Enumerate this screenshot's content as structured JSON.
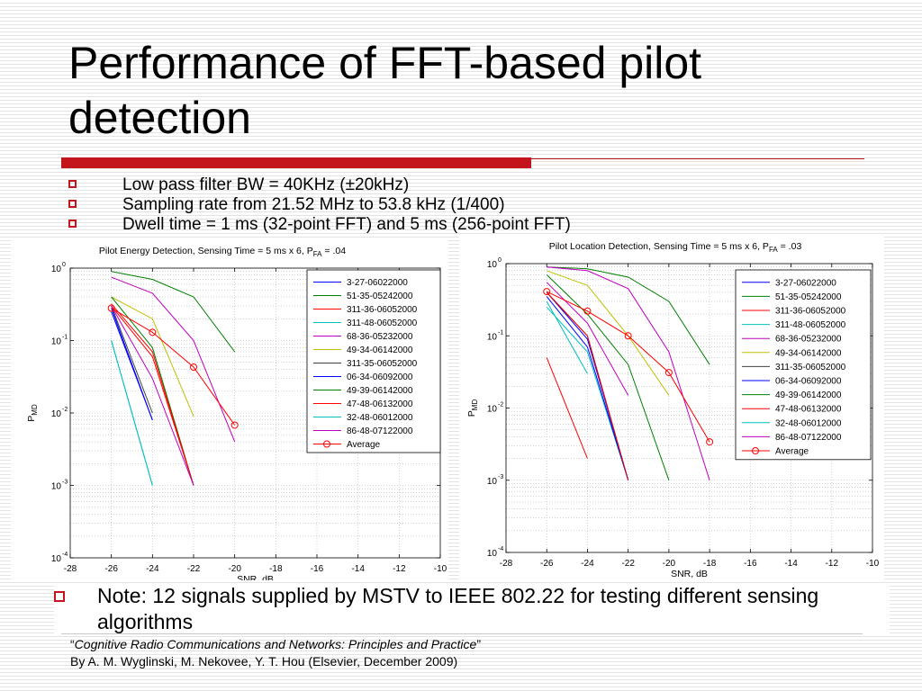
{
  "slide": {
    "title": "Performance of FFT-based pilot detection",
    "bullets": [
      {
        "text": "Low pass filter BW = 40KHz (±20kHz)"
      },
      {
        "text": "Sampling rate from 21.52 MHz to 53.8 kHz (1/400)"
      },
      {
        "text": "Dwell time = 1 ms (32-point FFT) and 5 ms (256-point FFT)"
      }
    ],
    "note": "Note: 12 signals supplied by MSTV to IEEE 802.22 for testing different sensing algorithms",
    "citation": {
      "quote_open": "“",
      "book": "Cognitive Radio Communications and Networks: Principles and Practice",
      "quote_close": "”",
      "authors": "By A. M. Wyglinski, M. Nekovee, Y. T. Hou (Elsevier, December 2009)"
    },
    "colors": {
      "accent": "#c4151c"
    }
  },
  "chart_data": [
    {
      "type": "line",
      "title": "Pilot Energy Detection, Sensing Time = 5 ms x 6, P",
      "title_sub": "FA",
      "title_suffix": " = .04",
      "xlabel": "SNR, dB",
      "ylabel": "P",
      "ylabel_sub": "MD",
      "xlim": [
        -28,
        -10
      ],
      "ylim": [
        0.0001,
        1
      ],
      "yscale": "log",
      "xticks": [
        -28,
        -26,
        -24,
        -22,
        -20,
        -18,
        -16,
        -14,
        -12,
        -10
      ],
      "xtick_labels": [
        "-28",
        "-26",
        "-24",
        "-22",
        "-20",
        "-18",
        "-16",
        "-14",
        "-12",
        "-10"
      ],
      "yticks": [
        {
          "value": 1,
          "base": "10",
          "exp": "0"
        },
        {
          "value": 0.1,
          "base": "10",
          "exp": "-1"
        },
        {
          "value": 0.01,
          "base": "10",
          "exp": "-2"
        },
        {
          "value": 0.001,
          "base": "10",
          "exp": "-3"
        },
        {
          "value": 0.0001,
          "base": "10",
          "exp": "-4"
        }
      ],
      "grid": true,
      "legend_position": "top-right",
      "series": [
        {
          "name": "3-27-06022000",
          "color": "#0000ff",
          "x": [
            -26,
            -24
          ],
          "y": [
            0.25,
            0.008
          ]
        },
        {
          "name": "51-35-05242000",
          "color": "#008000",
          "x": [
            -26,
            -24,
            -22,
            -20
          ],
          "y": [
            0.9,
            0.7,
            0.4,
            0.07
          ]
        },
        {
          "name": "311-36-06052000",
          "color": "#ff0000",
          "x": [
            -26,
            -24,
            -22
          ],
          "y": [
            0.3,
            0.06,
            0.001
          ]
        },
        {
          "name": "311-48-06052000",
          "color": "#00bfbf",
          "x": [
            -26,
            -24
          ],
          "y": [
            0.1,
            0.001
          ]
        },
        {
          "name": "68-36-05232000",
          "color": "#bf00bf",
          "x": [
            -26,
            -24,
            -22,
            -20
          ],
          "y": [
            0.75,
            0.45,
            0.1,
            0.004
          ]
        },
        {
          "name": "49-34-06142000",
          "color": "#bfbf00",
          "x": [
            -26,
            -24,
            -22
          ],
          "y": [
            0.4,
            0.2,
            0.009
          ]
        },
        {
          "name": "311-35-06052000",
          "color": "#404040",
          "x": [
            -26,
            -24
          ],
          "y": [
            0.3,
            0.01
          ]
        },
        {
          "name": "06-34-06092000",
          "color": "#0000ff",
          "x": [
            -26,
            -24
          ],
          "y": [
            0.28,
            0.008
          ]
        },
        {
          "name": "49-39-06142000",
          "color": "#008000",
          "x": [
            -26,
            -24,
            -22
          ],
          "y": [
            0.4,
            0.08,
            0.001
          ]
        },
        {
          "name": "47-48-06132000",
          "color": "#ff0000",
          "x": [
            -26,
            -24,
            -22
          ],
          "y": [
            0.32,
            0.07,
            0.001
          ]
        },
        {
          "name": "32-48-06012000",
          "color": "#00bfbf",
          "x": [
            -26,
            -24
          ],
          "y": [
            0.1,
            0.001
          ]
        },
        {
          "name": "86-48-07122000",
          "color": "#bf00bf",
          "x": [
            -26,
            -24,
            -22
          ],
          "y": [
            0.3,
            0.03,
            0.001
          ]
        },
        {
          "name": "Average",
          "color": "#ff0000",
          "marker": "circle",
          "x": [
            -26,
            -24,
            -22,
            -20
          ],
          "y": [
            0.28,
            0.13,
            0.043,
            0.0068
          ]
        }
      ]
    },
    {
      "type": "line",
      "title": "Pilot Location Detection, Sensing Time = 5 ms x 6, P",
      "title_sub": "FA",
      "title_suffix": " = .03",
      "xlabel": "SNR, dB",
      "ylabel": "P",
      "ylabel_sub": "MD",
      "xlim": [
        -28,
        -10
      ],
      "ylim": [
        0.0001,
        1
      ],
      "yscale": "log",
      "xticks": [
        -28,
        -26,
        -24,
        -22,
        -20,
        -18,
        -16,
        -14,
        -12,
        -10
      ],
      "xtick_labels": [
        "-28",
        "-26",
        "-24",
        "-22",
        "-20",
        "-18",
        "-16",
        "-14",
        "-12",
        "-10"
      ],
      "yticks": [
        {
          "value": 1,
          "base": "10",
          "exp": "0"
        },
        {
          "value": 0.1,
          "base": "10",
          "exp": "-1"
        },
        {
          "value": 0.01,
          "base": "10",
          "exp": "-2"
        },
        {
          "value": 0.001,
          "base": "10",
          "exp": "-3"
        },
        {
          "value": 0.0001,
          "base": "10",
          "exp": "-4"
        }
      ],
      "grid": true,
      "legend_position": "top-right",
      "series": [
        {
          "name": "3-27-06022000",
          "color": "#0000ff",
          "x": [
            -26,
            -24,
            -22
          ],
          "y": [
            0.4,
            0.09,
            0.001
          ]
        },
        {
          "name": "51-35-05242000",
          "color": "#008000",
          "x": [
            -26,
            -24,
            -22,
            -20,
            -18
          ],
          "y": [
            0.9,
            0.85,
            0.65,
            0.3,
            0.04
          ]
        },
        {
          "name": "311-36-06052000",
          "color": "#ff0000",
          "x": [
            -26,
            -24
          ],
          "y": [
            0.05,
            0.002
          ]
        },
        {
          "name": "311-48-06052000",
          "color": "#00bfbf",
          "x": [
            -26,
            -24,
            -22
          ],
          "y": [
            0.25,
            0.06,
            0.001
          ]
        },
        {
          "name": "68-36-05232000",
          "color": "#bf00bf",
          "x": [
            -26,
            -24,
            -22,
            -20,
            -18
          ],
          "y": [
            0.9,
            0.8,
            0.45,
            0.06,
            0.001
          ]
        },
        {
          "name": "49-34-06142000",
          "color": "#bfbf00",
          "x": [
            -26,
            -24,
            -22,
            -20
          ],
          "y": [
            0.8,
            0.5,
            0.1,
            0.015
          ]
        },
        {
          "name": "311-35-06052000",
          "color": "#404040",
          "x": [
            -26,
            -24,
            -22
          ],
          "y": [
            0.4,
            0.1,
            0.001
          ]
        },
        {
          "name": "06-34-06092000",
          "color": "#0000ff",
          "x": [
            -26,
            -24,
            -22
          ],
          "y": [
            0.35,
            0.07,
            0.001
          ]
        },
        {
          "name": "49-39-06142000",
          "color": "#008000",
          "x": [
            -26,
            -24,
            -22,
            -20
          ],
          "y": [
            0.7,
            0.2,
            0.04,
            0.001
          ]
        },
        {
          "name": "47-48-06132000",
          "color": "#ff0000",
          "x": [
            -26,
            -24,
            -22
          ],
          "y": [
            0.4,
            0.1,
            0.001
          ]
        },
        {
          "name": "32-48-06012000",
          "color": "#00bfbf",
          "x": [
            -26,
            -24
          ],
          "y": [
            0.3,
            0.03
          ]
        },
        {
          "name": "86-48-07122000",
          "color": "#bf00bf",
          "x": [
            -26,
            -24,
            -22
          ],
          "y": [
            0.55,
            0.15,
            0.015
          ]
        },
        {
          "name": "Average",
          "color": "#ff0000",
          "marker": "circle",
          "x": [
            -26,
            -24,
            -22,
            -20,
            -18
          ],
          "y": [
            0.41,
            0.22,
            0.1,
            0.031,
            0.0034
          ]
        }
      ]
    }
  ]
}
